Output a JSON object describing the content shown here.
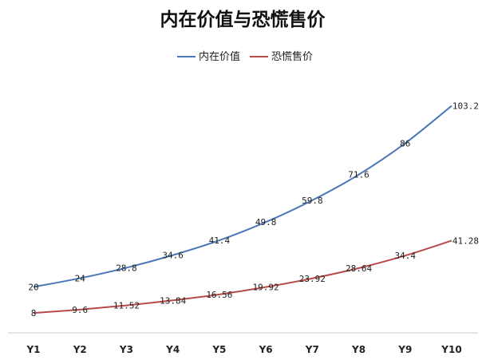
{
  "chart_data": {
    "type": "line",
    "title": "内在价值与恐慌售价",
    "xlabel": "",
    "ylabel": "",
    "categories": [
      "Y1",
      "Y2",
      "Y3",
      "Y4",
      "Y5",
      "Y6",
      "Y7",
      "Y8",
      "Y9",
      "Y10"
    ],
    "series": [
      {
        "name": "内在价值",
        "color": "#4a78b8",
        "values": [
          20,
          24,
          28.8,
          34.6,
          41.4,
          49.8,
          59.8,
          71.6,
          86,
          103.2
        ],
        "labels": [
          "20",
          "24",
          "28.8",
          "34.6",
          "41.4",
          "49.8",
          "59.8",
          "71.6",
          "86",
          "103.2"
        ]
      },
      {
        "name": "恐慌售价",
        "color": "#b84a4a",
        "values": [
          8,
          9.6,
          11.52,
          13.84,
          16.56,
          19.92,
          23.92,
          28.64,
          34.4,
          41.28
        ],
        "labels": [
          "8",
          "9.6",
          "11.52",
          "13.84",
          "16.56",
          "19.92",
          "23.92",
          "28.64",
          "34.4",
          "41.28"
        ]
      }
    ],
    "ylim": [
      0,
      110
    ],
    "grid": false,
    "legend_position": "top-center",
    "y_axis_visible": false
  }
}
